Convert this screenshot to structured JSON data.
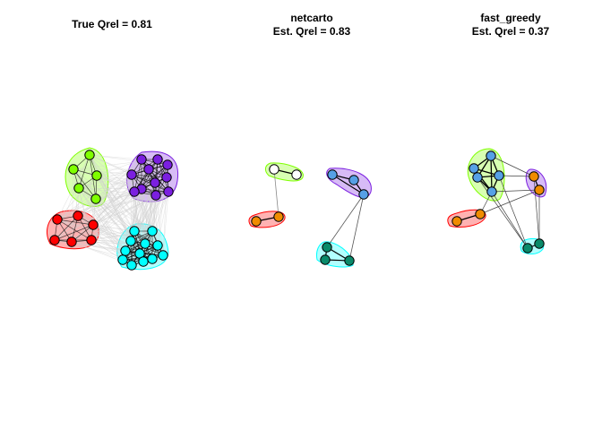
{
  "panels": [
    {
      "title_lines": [
        "True Qrel = 0.81"
      ]
    },
    {
      "title_lines": [
        "netcarto",
        "Est. Qrel = 0.83"
      ]
    },
    {
      "title_lines": [
        "fast_greedy",
        "Est. Qrel = 0.37"
      ]
    }
  ],
  "colors": {
    "green": "#7fff00",
    "purple": "#7b1fe0",
    "red": "#ff0000",
    "cyan": "#00ffff",
    "white": "#ffffff",
    "orange": "#f08c00",
    "blue": "#56a0e6",
    "teal": "#0a8a6a",
    "edge_light": "#cfcfcf",
    "edge_dark": "#000000"
  }
}
